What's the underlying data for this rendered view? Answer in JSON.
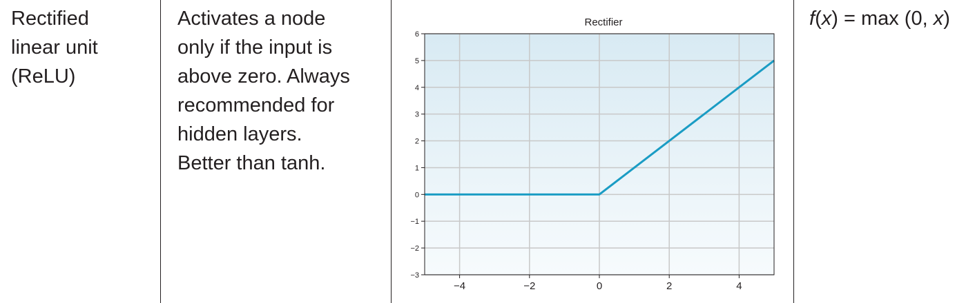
{
  "row": {
    "name_lines": [
      "Rectified",
      "linear unit",
      "(ReLU)"
    ],
    "description_lines": [
      "Activates a node",
      "only if the input is",
      "above zero. Always",
      "recommended for",
      "hidden layers.",
      "Better than tanh."
    ],
    "formula": {
      "f": "f",
      "open": "(",
      "x": "x",
      "rest": ") = max (0, ",
      "x2": "x",
      "close": ")"
    }
  },
  "chart_data": {
    "type": "line",
    "title": "Rectifier",
    "xlabel": "",
    "ylabel": "",
    "xlim": [
      -5,
      5
    ],
    "ylim": [
      -3,
      6
    ],
    "xticks": [
      -4,
      -2,
      0,
      2,
      4
    ],
    "xtick_labels": [
      "−4",
      "−2",
      "0",
      "2",
      "4"
    ],
    "yticks": [
      -3,
      -2,
      -1,
      0,
      1,
      2,
      3,
      4,
      5,
      6
    ],
    "ytick_labels": [
      "−3",
      "−2",
      "−1",
      "0",
      "1",
      "2",
      "3",
      "4",
      "5",
      "6"
    ],
    "grid": true,
    "series": [
      {
        "x": [
          -5,
          0,
          5
        ],
        "y": [
          0,
          0,
          5
        ],
        "color": "#1a9cc4"
      }
    ],
    "colors": {
      "line": "#1a9cc4",
      "grid": "#c8c8c8",
      "bg_top": "#d8eaf3",
      "bg_bottom": "#f7fbfd"
    }
  }
}
